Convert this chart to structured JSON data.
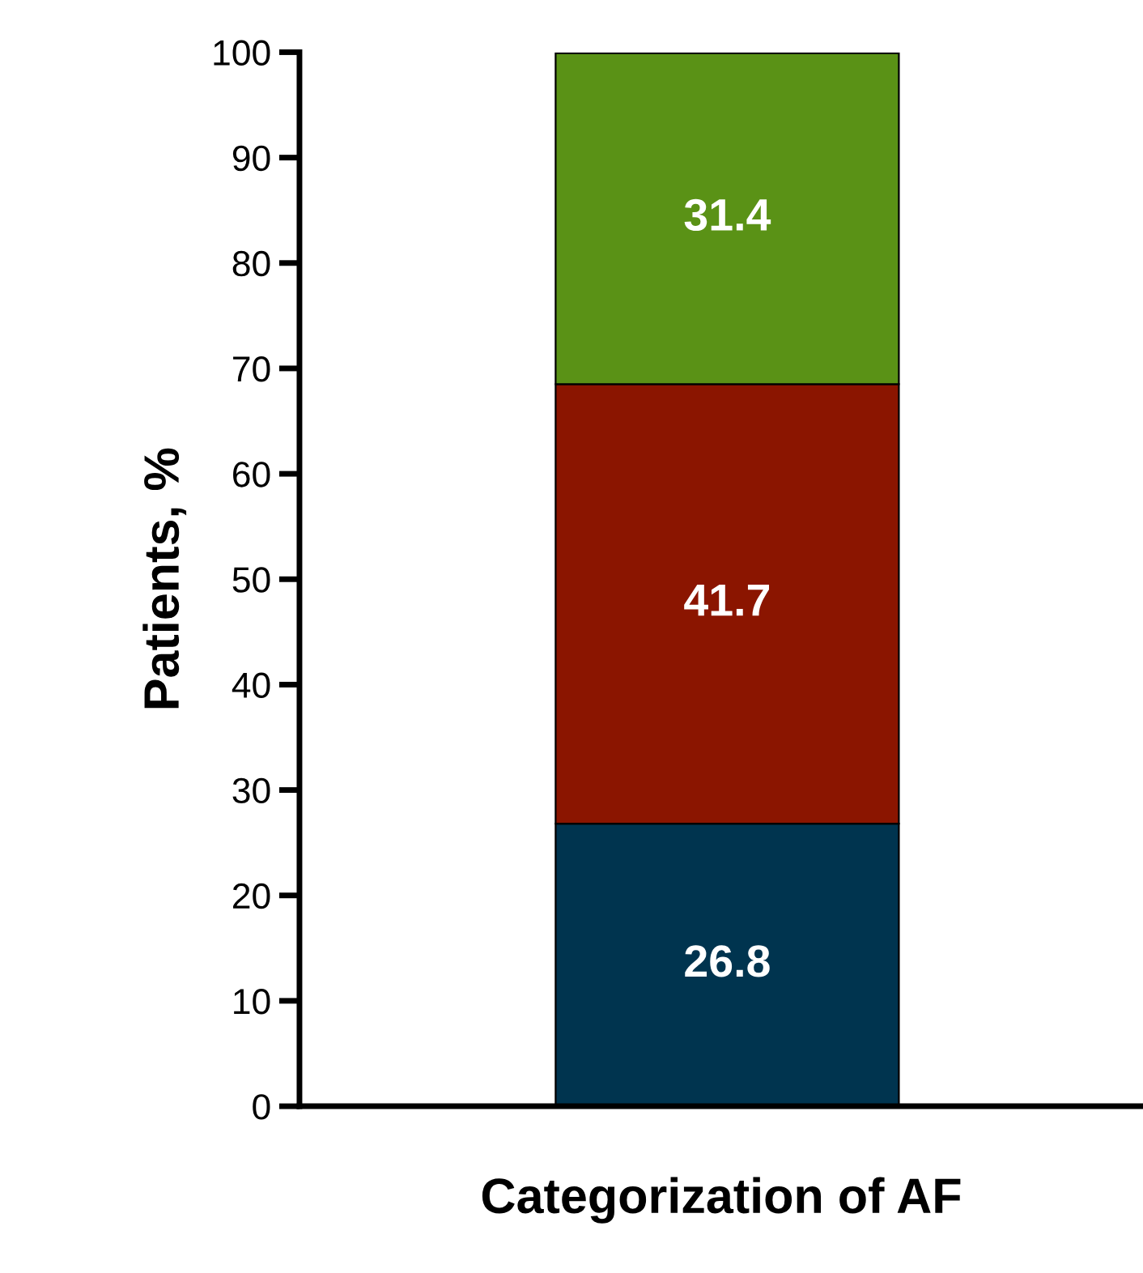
{
  "chart_data": {
    "type": "bar",
    "stacked": true,
    "xlabel": "Categorization of AF",
    "ylabel": "Patients, %",
    "categories": [
      null
    ],
    "series": [
      {
        "color": "#00344f",
        "values": [
          26.8
        ]
      },
      {
        "color": "#8b1500",
        "values": [
          41.7
        ]
      },
      {
        "color": "#5a9216",
        "values": [
          31.4
        ]
      }
    ],
    "ylim": [
      0,
      100
    ],
    "yticks": [
      0,
      10,
      20,
      30,
      40,
      50,
      60,
      70,
      80,
      90,
      100
    ],
    "data_labels": true,
    "grid": false,
    "legend": false
  }
}
